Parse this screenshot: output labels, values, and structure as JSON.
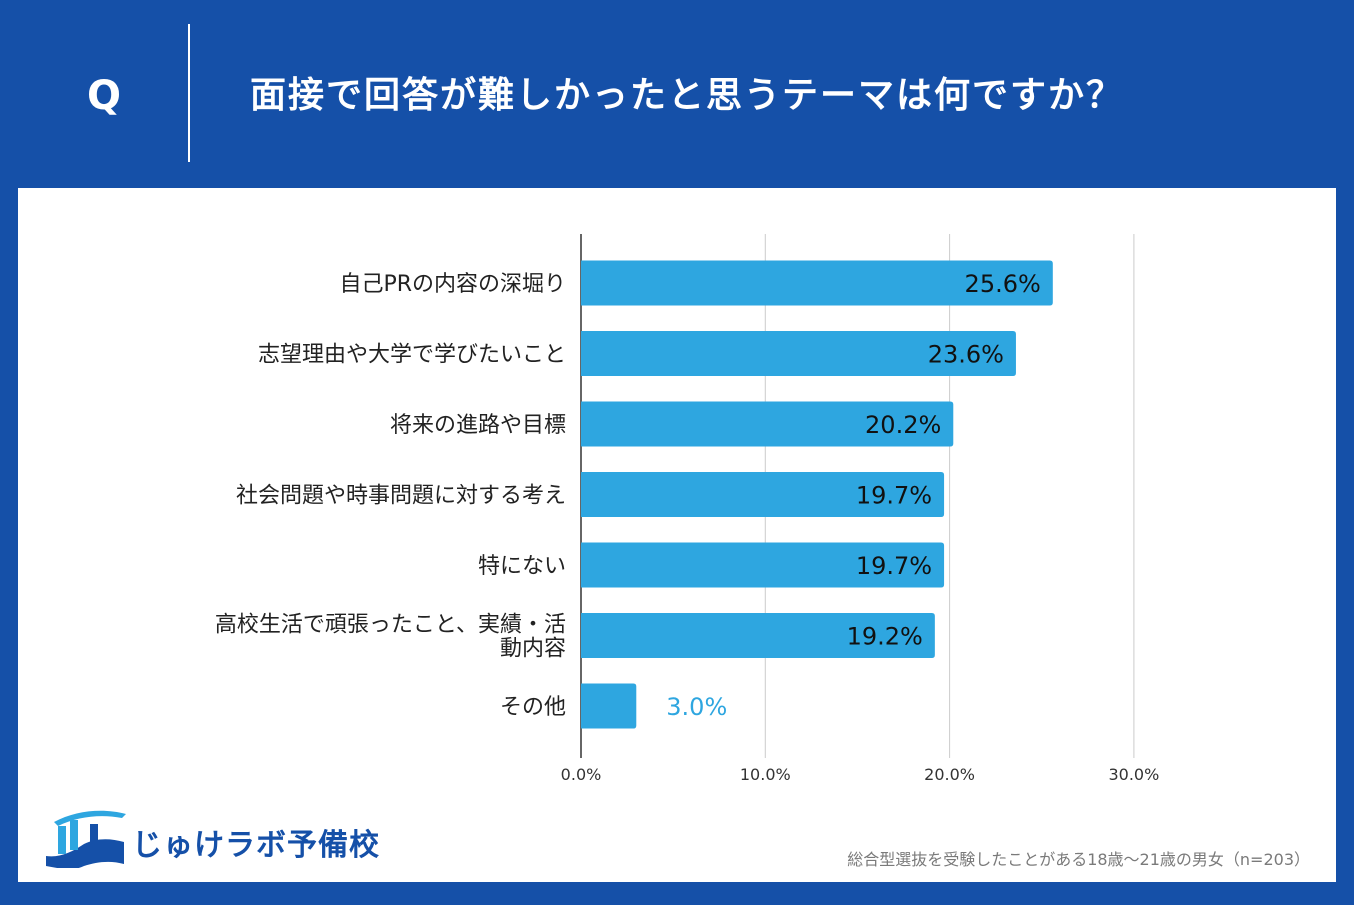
{
  "header": {
    "q_label": "Q",
    "question": "面接で回答が難しかったと思うテーマは何ですか？"
  },
  "colors": {
    "bar": "#2ea6e0",
    "background": "#1550a8",
    "grid": "#cccccc",
    "axis": "#333333",
    "outside_label": "#2ea6e0"
  },
  "chart_data": {
    "type": "bar",
    "orientation": "horizontal",
    "title": "面接で回答が難しかったと思うテーマは何ですか？",
    "categories": [
      [
        "自己PRの内容の深堀り"
      ],
      [
        "志望理由や大学で学びたいこと"
      ],
      [
        "将来の進路や目標"
      ],
      [
        "社会問題や時事問題に対する考え"
      ],
      [
        "特にない"
      ],
      [
        "高校生活で頑張ったこと、実績・活",
        "動内容"
      ],
      [
        "その他"
      ]
    ],
    "values": [
      25.6,
      23.6,
      20.2,
      19.7,
      19.7,
      19.2,
      3.0
    ],
    "value_labels": [
      "25.6%",
      "23.6%",
      "20.2%",
      "19.7%",
      "19.7%",
      "19.2%",
      "3.0%"
    ],
    "xlim": [
      0,
      30
    ],
    "xticks": [
      0,
      10,
      20,
      30
    ],
    "xtick_labels": [
      "0.0%",
      "10.0%",
      "20.0%",
      "30.0%"
    ],
    "grid": true
  },
  "logo": {
    "text": "じゅけラボ予備校",
    "icon": "open-book-icon"
  },
  "footnote": "総合型選抜を受験したことがある18歳～21歳の男女（n=203）"
}
